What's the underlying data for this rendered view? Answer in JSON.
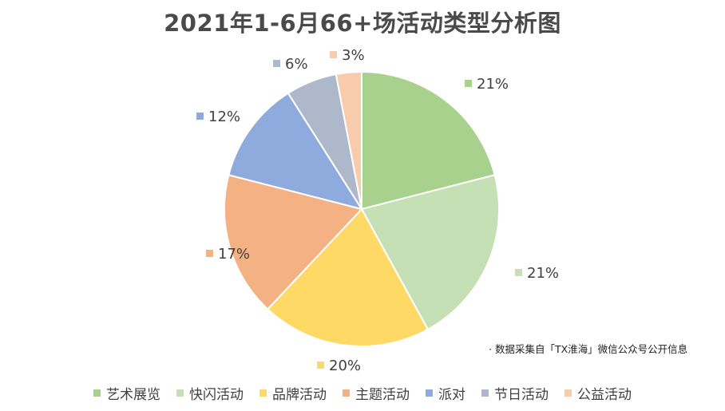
{
  "chart_data": {
    "type": "pie",
    "title": "2021年1-6月66+场活动类型分析图",
    "slices": [
      {
        "name": "艺术展览",
        "value": 21,
        "label": "21%",
        "color": "#a9d18e"
      },
      {
        "name": "快闪活动",
        "value": 21,
        "label": "21%",
        "color": "#c5e0b4"
      },
      {
        "name": "品牌活动",
        "value": 20,
        "label": "20%",
        "color": "#ffd966"
      },
      {
        "name": "主题活动",
        "value": 17,
        "label": "17%",
        "color": "#f4b183"
      },
      {
        "name": "派对",
        "value": 12,
        "label": "12%",
        "color": "#8faadc"
      },
      {
        "name": "节日活动",
        "value": 6,
        "label": "6%",
        "color": "#adb9ca"
      },
      {
        "name": "公益活动",
        "value": 3,
        "label": "3%",
        "color": "#f8cbad"
      }
    ],
    "source_note": "数据采集自「TX淮海」微信公众号公开信息",
    "legend_position": "bottom"
  }
}
